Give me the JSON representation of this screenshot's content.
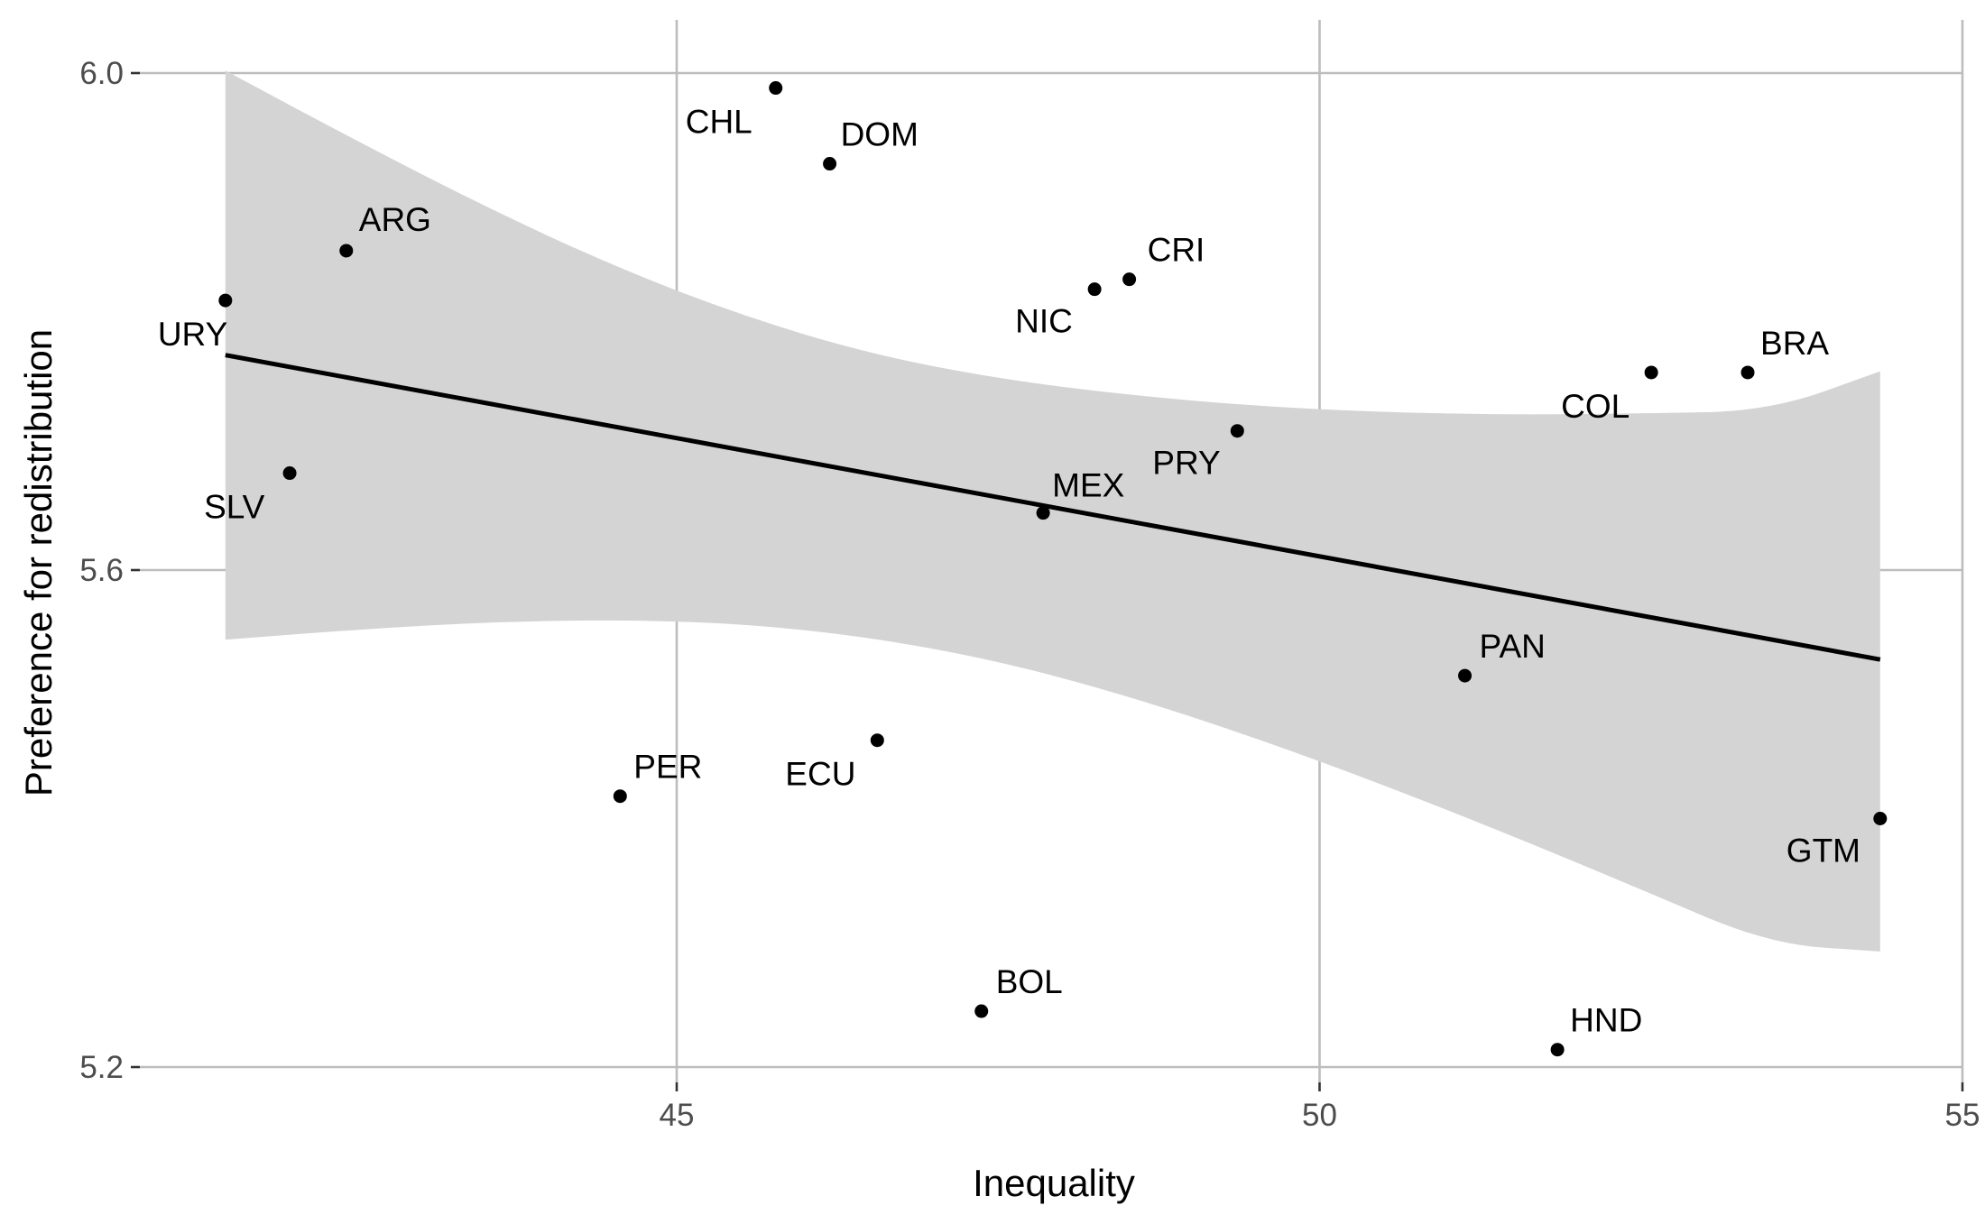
{
  "chart_data": {
    "type": "scatter",
    "xlabel": "Inequality",
    "ylabel": "Preference for redistribution",
    "xlim": [
      41.4,
      55
    ],
    "ylim": [
      5.18,
      6.04
    ],
    "x_ticks": [
      "45",
      "50",
      "55"
    ],
    "y_ticks": [
      "5.2",
      "5.6",
      "6.0"
    ],
    "grid": true,
    "points": [
      {
        "label": "CHL",
        "x": 45.77,
        "y": 5.988
      },
      {
        "label": "DOM",
        "x": 46.19,
        "y": 5.927
      },
      {
        "label": "ARG",
        "x": 42.43,
        "y": 5.857
      },
      {
        "label": "URY",
        "x": 41.49,
        "y": 5.817
      },
      {
        "label": "CRI",
        "x": 48.52,
        "y": 5.834
      },
      {
        "label": "NIC",
        "x": 48.25,
        "y": 5.826
      },
      {
        "label": "BRA",
        "x": 53.33,
        "y": 5.759
      },
      {
        "label": "COL",
        "x": 52.58,
        "y": 5.759
      },
      {
        "label": "PRY",
        "x": 49.36,
        "y": 5.712
      },
      {
        "label": "SLV",
        "x": 41.99,
        "y": 5.678
      },
      {
        "label": "MEX",
        "x": 47.85,
        "y": 5.646
      },
      {
        "label": "PAN",
        "x": 51.13,
        "y": 5.515
      },
      {
        "label": "ECU",
        "x": 46.56,
        "y": 5.463
      },
      {
        "label": "PER",
        "x": 44.56,
        "y": 5.418
      },
      {
        "label": "GTM",
        "x": 54.36,
        "y": 5.4
      },
      {
        "label": "BOL",
        "x": 47.37,
        "y": 5.245
      },
      {
        "label": "HND",
        "x": 51.85,
        "y": 5.214
      }
    ],
    "fit_line": {
      "x": [
        41.49,
        54.36
      ],
      "y": [
        5.773,
        5.528
      ]
    },
    "confidence_band": [
      {
        "x": 41.49,
        "lower": 5.544,
        "upper": 6.002
      },
      {
        "x": 42.5,
        "lower": 5.552,
        "upper": 5.946
      },
      {
        "x": 43.5,
        "lower": 5.558,
        "upper": 5.893
      },
      {
        "x": 44.5,
        "lower": 5.56,
        "upper": 5.845
      },
      {
        "x": 45.5,
        "lower": 5.557,
        "upper": 5.805
      },
      {
        "x": 46.5,
        "lower": 5.546,
        "upper": 5.774
      },
      {
        "x": 47.5,
        "lower": 5.527,
        "upper": 5.754
      },
      {
        "x": 48.5,
        "lower": 5.499,
        "upper": 5.741
      },
      {
        "x": 49.5,
        "lower": 5.465,
        "upper": 5.732
      },
      {
        "x": 50.5,
        "lower": 5.427,
        "upper": 5.727
      },
      {
        "x": 51.5,
        "lower": 5.386,
        "upper": 5.725
      },
      {
        "x": 52.5,
        "lower": 5.343,
        "upper": 5.726
      },
      {
        "x": 53.5,
        "lower": 5.299,
        "upper": 5.728
      },
      {
        "x": 54.36,
        "lower": 5.293,
        "upper": 5.76
      }
    ],
    "colors": {
      "points": "#000000",
      "fit_line": "#000000",
      "band": "#d4d4d4",
      "grid": "#bdbdbd"
    }
  }
}
